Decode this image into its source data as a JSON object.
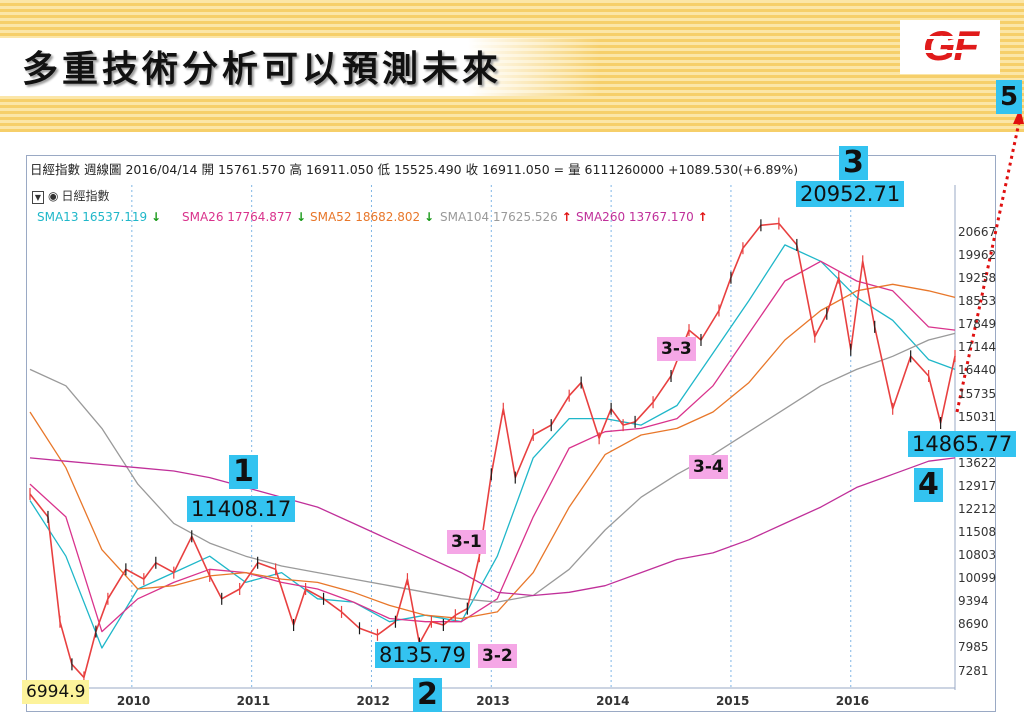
{
  "slide": {
    "title": "多重技術分析可以預測未來",
    "logo_text": "GF"
  },
  "chart_header": {
    "info": "日經指數  週線圖  2016/04/14  開 15761.570  高 16911.050  低 15525.490  收 16911.050 =   量 6111260000   +1089.530(+6.89%)",
    "legend_title": "日經指數",
    "sma": [
      {
        "label": "SMA13",
        "value": "16537.119",
        "dir": "down",
        "color": "#1fb7c9"
      },
      {
        "label": "SMA26",
        "value": "17764.877",
        "dir": "down",
        "color": "#d9338c"
      },
      {
        "label": "SMA52",
        "value": "18682.802",
        "dir": "down",
        "color": "#e8772a"
      },
      {
        "label": "SMA104",
        "value": "17625.526",
        "dir": "up",
        "color": "#9a9a9a"
      },
      {
        "label": "SMA260",
        "value": "13767.170",
        "dir": "up",
        "color": "#c0309a"
      }
    ]
  },
  "annotations": {
    "wave1_num": "1",
    "wave1_value": "11408.17",
    "wave2_num": "2",
    "wave2_value": "8135.79",
    "wave3_num": "3",
    "wave3_value": "20952.71",
    "wave4_num": "4",
    "wave4_value": "14865.77",
    "wave5_num": "5",
    "start_value": "6994.9",
    "sub_3_1": "3-1",
    "sub_3_2": "3-2",
    "sub_3_3": "3-3",
    "sub_3_4": "3-4"
  },
  "chart_data": {
    "type": "line",
    "title": "日經指數 週線圖",
    "x_ticks": [
      "2010",
      "2011",
      "2012",
      "2013",
      "2014",
      "2015",
      "2016"
    ],
    "x_tick_index": [
      0.85,
      1.85,
      2.85,
      3.85,
      4.85,
      5.85,
      6.85
    ],
    "y_ticks": [
      7281,
      7985,
      8690,
      9394,
      10099,
      10803,
      11508,
      12212,
      12917,
      13622,
      14326,
      15031,
      15735,
      16440,
      17144,
      17849,
      18553,
      19258,
      19962,
      20667
    ],
    "ylim": [
      6900,
      21000
    ],
    "xlim": [
      0,
      7.72
    ],
    "series": [
      {
        "name": "日經指數",
        "color": "#e84040",
        "x": [
          0.0,
          0.15,
          0.25,
          0.35,
          0.45,
          0.55,
          0.65,
          0.8,
          0.95,
          1.05,
          1.2,
          1.35,
          1.5,
          1.6,
          1.75,
          1.9,
          2.05,
          2.2,
          2.3,
          2.45,
          2.6,
          2.75,
          2.9,
          3.05,
          3.15,
          3.25,
          3.35,
          3.45,
          3.55,
          3.65,
          3.75,
          3.85,
          3.95,
          4.05,
          4.2,
          4.35,
          4.5,
          4.6,
          4.75,
          4.85,
          4.95,
          5.05,
          5.2,
          5.35,
          5.5,
          5.6,
          5.75,
          5.85,
          5.95,
          6.1,
          6.25,
          6.4,
          6.55,
          6.65,
          6.75,
          6.85,
          6.95,
          7.05,
          7.2,
          7.35,
          7.5,
          7.6,
          7.72
        ],
        "values": [
          12700,
          12000,
          8800,
          7500,
          7100,
          8500,
          9500,
          10400,
          10100,
          10600,
          10300,
          11408,
          10200,
          9500,
          9800,
          10600,
          10400,
          8700,
          9800,
          9500,
          9100,
          8600,
          8400,
          8800,
          10100,
          8136,
          8800,
          8700,
          9000,
          9200,
          10800,
          13300,
          15300,
          13200,
          14500,
          14800,
          15700,
          16100,
          14400,
          15300,
          14800,
          14900,
          15500,
          16300,
          17700,
          17400,
          18300,
          19300,
          20200,
          20900,
          20953,
          20300,
          17500,
          18200,
          19300,
          17100,
          19800,
          17800,
          15300,
          16900,
          16300,
          14866,
          16911
        ]
      },
      {
        "name": "SMA13",
        "color": "#1fb7c9",
        "x": [
          0.0,
          0.3,
          0.6,
          0.9,
          1.2,
          1.5,
          1.8,
          2.1,
          2.4,
          2.7,
          3.0,
          3.3,
          3.6,
          3.9,
          4.2,
          4.5,
          4.8,
          5.1,
          5.4,
          5.7,
          6.0,
          6.3,
          6.6,
          6.9,
          7.2,
          7.5,
          7.72
        ],
        "values": [
          12500,
          10800,
          8000,
          9800,
          10300,
          10800,
          10000,
          10300,
          9500,
          9400,
          8800,
          9000,
          8800,
          10800,
          13800,
          15000,
          15000,
          14800,
          15400,
          17000,
          18600,
          20300,
          19800,
          18700,
          18000,
          16800,
          16500
        ]
      },
      {
        "name": "SMA26",
        "color": "#d9338c",
        "x": [
          0.0,
          0.3,
          0.6,
          0.9,
          1.2,
          1.5,
          1.8,
          2.1,
          2.4,
          2.7,
          3.0,
          3.3,
          3.6,
          3.9,
          4.2,
          4.5,
          4.8,
          5.1,
          5.4,
          5.7,
          6.0,
          6.3,
          6.6,
          6.9,
          7.2,
          7.5,
          7.72
        ],
        "values": [
          13000,
          12000,
          8500,
          9500,
          10000,
          10400,
          10300,
          10000,
          9800,
          9400,
          8900,
          8800,
          8800,
          9500,
          12000,
          14100,
          14600,
          14700,
          15000,
          16000,
          17600,
          19200,
          19800,
          19200,
          18900,
          17800,
          17700
        ]
      },
      {
        "name": "SMA52",
        "color": "#e8772a",
        "x": [
          0.0,
          0.3,
          0.6,
          0.9,
          1.2,
          1.5,
          1.8,
          2.1,
          2.4,
          2.7,
          3.0,
          3.3,
          3.6,
          3.9,
          4.2,
          4.5,
          4.8,
          5.1,
          5.4,
          5.7,
          6.0,
          6.3,
          6.6,
          6.9,
          7.2,
          7.5,
          7.72
        ],
        "values": [
          15200,
          13500,
          11000,
          9800,
          9900,
          10200,
          10300,
          10100,
          10000,
          9700,
          9300,
          9000,
          8900,
          9100,
          10300,
          12300,
          13900,
          14500,
          14700,
          15200,
          16100,
          17400,
          18300,
          18900,
          19100,
          18900,
          18700
        ]
      },
      {
        "name": "SMA104",
        "color": "#9a9a9a",
        "x": [
          0.0,
          0.3,
          0.6,
          0.9,
          1.2,
          1.5,
          1.8,
          2.1,
          2.4,
          2.7,
          3.0,
          3.3,
          3.6,
          3.9,
          4.2,
          4.5,
          4.8,
          5.1,
          5.4,
          5.7,
          6.0,
          6.3,
          6.6,
          6.9,
          7.2,
          7.5,
          7.72
        ],
        "values": [
          16500,
          16000,
          14700,
          13000,
          11800,
          11200,
          10800,
          10500,
          10300,
          10100,
          9900,
          9700,
          9500,
          9400,
          9600,
          10400,
          11600,
          12600,
          13300,
          13900,
          14600,
          15300,
          16000,
          16500,
          16900,
          17400,
          17600
        ]
      },
      {
        "name": "SMA260",
        "color": "#c0309a",
        "x": [
          0.0,
          0.3,
          0.6,
          0.9,
          1.2,
          1.5,
          1.8,
          2.1,
          2.4,
          2.7,
          3.0,
          3.3,
          3.6,
          3.9,
          4.2,
          4.5,
          4.8,
          5.1,
          5.4,
          5.7,
          6.0,
          6.3,
          6.6,
          6.9,
          7.2,
          7.5,
          7.72
        ],
        "values": [
          13800,
          13700,
          13600,
          13500,
          13400,
          13200,
          12900,
          12600,
          12300,
          11800,
          11300,
          10800,
          10300,
          9700,
          9600,
          9700,
          9900,
          10300,
          10700,
          10900,
          11300,
          11800,
          12300,
          12900,
          13300,
          13700,
          13800
        ]
      }
    ]
  }
}
